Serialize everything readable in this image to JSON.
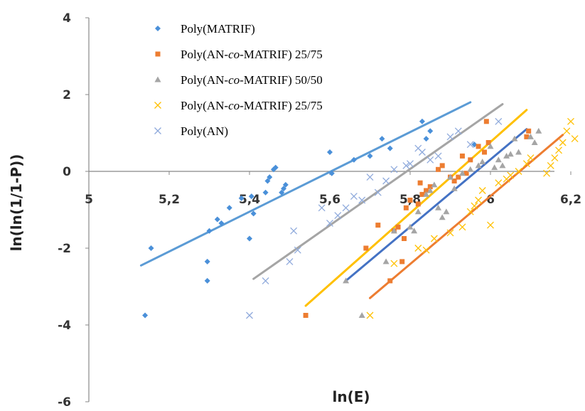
{
  "chart_data": {
    "type": "scatter",
    "xlabel": "ln(E)",
    "ylabel": "ln(ln(1/1-P))",
    "xlim": [
      5,
      6.2
    ],
    "ylim": [
      -6,
      4
    ],
    "x_ticks": [
      "5",
      "5,2",
      "5,4",
      "5,6",
      "5,8",
      "6",
      "6,2"
    ],
    "y_ticks": [
      "4",
      "2",
      "0",
      "-2",
      "-4",
      "-6"
    ],
    "legend_position": "top-left",
    "series": [
      {
        "name": "Poly(MATRIF)",
        "marker": "diamond",
        "color": "#4a90d9",
        "points": [
          [
            5.14,
            -3.75
          ],
          [
            5.155,
            -2.0
          ],
          [
            5.295,
            -2.85
          ],
          [
            5.295,
            -2.35
          ],
          [
            5.3,
            -1.55
          ],
          [
            5.32,
            -1.25
          ],
          [
            5.33,
            -1.35
          ],
          [
            5.35,
            -0.95
          ],
          [
            5.38,
            -0.7
          ],
          [
            5.4,
            -1.75
          ],
          [
            5.405,
            -0.65
          ],
          [
            5.41,
            -1.1
          ],
          [
            5.44,
            -0.55
          ],
          [
            5.445,
            -0.25
          ],
          [
            5.45,
            -0.15
          ],
          [
            5.46,
            0.05
          ],
          [
            5.465,
            0.1
          ],
          [
            5.48,
            -0.55
          ],
          [
            5.485,
            -0.45
          ],
          [
            5.49,
            -0.35
          ],
          [
            5.6,
            0.5
          ],
          [
            5.605,
            -0.05
          ],
          [
            5.66,
            0.3
          ],
          [
            5.7,
            0.4
          ],
          [
            5.73,
            0.85
          ],
          [
            5.75,
            0.6
          ],
          [
            5.83,
            1.3
          ],
          [
            5.84,
            0.85
          ],
          [
            5.85,
            1.05
          ],
          [
            5.96,
            0.7
          ]
        ],
        "trendline": [
          [
            5.13,
            -2.45
          ],
          [
            5.95,
            1.8
          ]
        ]
      },
      {
        "name": "Poly(AN-co-MATRIF) 25/75",
        "marker": "square",
        "color": "#ed7d31",
        "points": [
          [
            5.54,
            -3.75
          ],
          [
            5.69,
            -2.0
          ],
          [
            5.72,
            -1.4
          ],
          [
            5.75,
            -2.85
          ],
          [
            5.76,
            -1.55
          ],
          [
            5.77,
            -1.45
          ],
          [
            5.78,
            -2.35
          ],
          [
            5.785,
            -1.75
          ],
          [
            5.79,
            -0.95
          ],
          [
            5.8,
            -0.75
          ],
          [
            5.82,
            -0.85
          ],
          [
            5.825,
            -0.3
          ],
          [
            5.83,
            -0.6
          ],
          [
            5.84,
            -0.5
          ],
          [
            5.85,
            -0.4
          ],
          [
            5.87,
            0.05
          ],
          [
            5.88,
            0.15
          ],
          [
            5.9,
            -0.15
          ],
          [
            5.91,
            -0.25
          ],
          [
            5.92,
            -0.15
          ],
          [
            5.93,
            0.4
          ],
          [
            5.94,
            -0.05
          ],
          [
            5.95,
            0.3
          ],
          [
            5.97,
            0.65
          ],
          [
            5.985,
            0.5
          ],
          [
            5.99,
            1.3
          ],
          [
            5.995,
            0.75
          ],
          [
            6.09,
            0.9
          ],
          [
            6.095,
            1.05
          ]
        ],
        "trendline": [
          [
            5.54,
            -3.5
          ],
          [
            6.09,
            1.6
          ]
        ]
      },
      {
        "name": "Poly(AN-co-MATRIF) 50/50",
        "marker": "triangle",
        "color": "#a5a5a5",
        "points": [
          [
            5.64,
            -2.85
          ],
          [
            5.68,
            -3.75
          ],
          [
            5.74,
            -2.35
          ],
          [
            5.76,
            -1.55
          ],
          [
            5.8,
            -1.45
          ],
          [
            5.81,
            -1.55
          ],
          [
            5.82,
            -1.05
          ],
          [
            5.84,
            -0.6
          ],
          [
            5.85,
            -0.5
          ],
          [
            5.86,
            -0.35
          ],
          [
            5.87,
            -0.95
          ],
          [
            5.88,
            -1.2
          ],
          [
            5.89,
            -1.05
          ],
          [
            5.9,
            -0.15
          ],
          [
            5.91,
            -0.45
          ],
          [
            5.93,
            -0.05
          ],
          [
            5.95,
            0.05
          ],
          [
            5.97,
            0.15
          ],
          [
            5.98,
            0.25
          ],
          [
            6.0,
            0.65
          ],
          [
            6.01,
            0.1
          ],
          [
            6.02,
            0.3
          ],
          [
            6.03,
            0.15
          ],
          [
            6.04,
            0.4
          ],
          [
            6.05,
            0.45
          ],
          [
            6.06,
            0.85
          ],
          [
            6.07,
            0.5
          ],
          [
            6.1,
            0.9
          ],
          [
            6.11,
            0.75
          ],
          [
            6.12,
            1.05
          ]
        ],
        "trendline": [
          [
            5.64,
            -2.85
          ],
          [
            6.09,
            1.1
          ]
        ]
      },
      {
        "name": "Poly(AN-co-MATRIF) 25/75",
        "marker": "x",
        "color": "#ffc000",
        "points": [
          [
            5.7,
            -3.75
          ],
          [
            5.76,
            -2.4
          ],
          [
            5.82,
            -2.0
          ],
          [
            5.84,
            -2.05
          ],
          [
            5.86,
            -1.75
          ],
          [
            5.9,
            -1.6
          ],
          [
            5.93,
            -1.45
          ],
          [
            5.95,
            -1.05
          ],
          [
            5.96,
            -0.9
          ],
          [
            5.97,
            -0.75
          ],
          [
            5.98,
            -0.5
          ],
          [
            6.0,
            -1.4
          ],
          [
            6.02,
            -0.3
          ],
          [
            6.04,
            -0.2
          ],
          [
            6.05,
            -0.1
          ],
          [
            6.07,
            0.0
          ],
          [
            6.09,
            0.2
          ],
          [
            6.1,
            0.35
          ],
          [
            6.14,
            -0.05
          ],
          [
            6.15,
            0.15
          ],
          [
            6.16,
            0.35
          ],
          [
            6.17,
            0.55
          ],
          [
            6.18,
            0.75
          ],
          [
            6.19,
            1.05
          ],
          [
            6.2,
            1.3
          ],
          [
            6.21,
            0.85
          ]
        ],
        "trendline": [
          [
            5.7,
            -3.3
          ],
          [
            6.18,
            0.95
          ]
        ]
      },
      {
        "name": "Poly(AN)",
        "marker": "x",
        "color": "#8faadc",
        "points": [
          [
            5.4,
            -3.75
          ],
          [
            5.44,
            -2.85
          ],
          [
            5.5,
            -2.35
          ],
          [
            5.51,
            -1.55
          ],
          [
            5.52,
            -2.05
          ],
          [
            5.58,
            -0.95
          ],
          [
            5.6,
            -1.35
          ],
          [
            5.62,
            -1.15
          ],
          [
            5.64,
            -0.95
          ],
          [
            5.66,
            -0.65
          ],
          [
            5.68,
            -0.75
          ],
          [
            5.7,
            -0.15
          ],
          [
            5.72,
            -0.55
          ],
          [
            5.74,
            -0.25
          ],
          [
            5.76,
            0.05
          ],
          [
            5.79,
            0.15
          ],
          [
            5.8,
            0.2
          ],
          [
            5.82,
            0.6
          ],
          [
            5.83,
            0.5
          ],
          [
            5.85,
            0.3
          ],
          [
            5.87,
            0.4
          ],
          [
            5.9,
            0.9
          ],
          [
            5.92,
            1.05
          ],
          [
            5.95,
            0.7
          ],
          [
            6.02,
            1.3
          ]
        ],
        "trendline": [
          [
            5.41,
            -2.8
          ],
          [
            6.03,
            1.75
          ]
        ]
      }
    ],
    "trendline_colors": [
      "#5b9bd5",
      "#4472c4",
      "#ed7d31",
      "#a5a5a5",
      "#ffc000"
    ],
    "trendline_map": [
      0,
      4,
      1,
      2,
      3
    ]
  },
  "legend_labels": [
    [
      "Poly(MATRIF)"
    ],
    [
      "Poly(AN-",
      "co",
      "-MATRIF) 25/75"
    ],
    [
      "Poly(AN-",
      "co",
      "-MATRIF) 50/50"
    ],
    [
      " Poly(AN-",
      "co",
      "-MATRIF) 25/75"
    ],
    [
      "Poly(AN)"
    ]
  ]
}
